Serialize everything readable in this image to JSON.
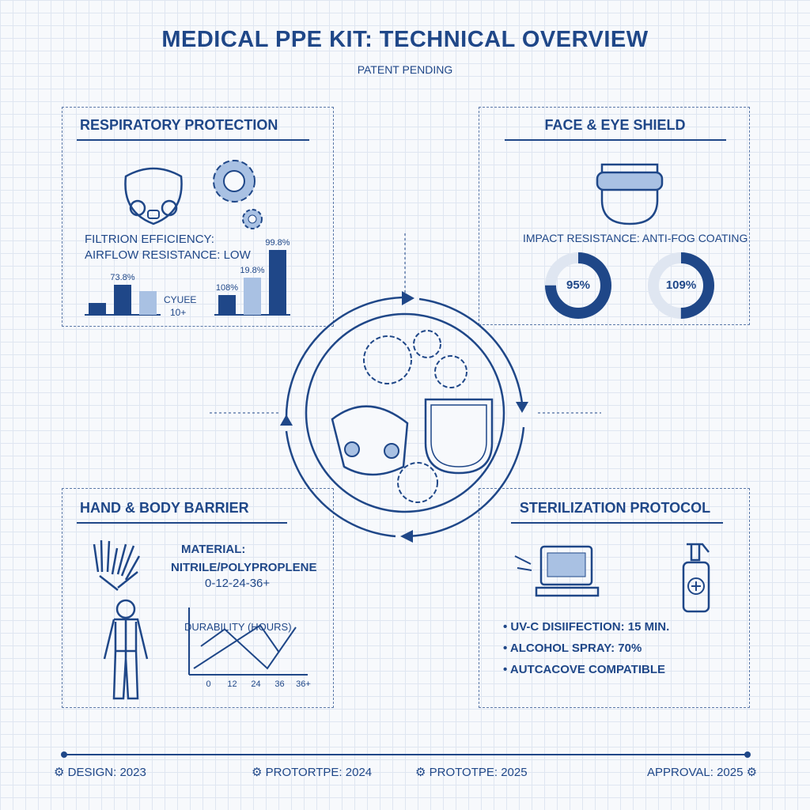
{
  "header": {
    "title": "MEDICAL PPE KIT: TECHNICAL OVERVIEW",
    "subtitle": "PATENT PENDING"
  },
  "respiratory": {
    "heading": "RESPIRATORY PROTECTION",
    "line1": "FILTRION EFFICIENCY:",
    "line2": "AIRFLOW RESISTANCE: LOW",
    "cycle_label": "CYUEE",
    "cycle_value": "10+",
    "chart_a": {
      "type": "bar",
      "labels": [
        "",
        "73.8%",
        ""
      ],
      "values": [
        15,
        38,
        30
      ]
    },
    "chart_b": {
      "type": "bar",
      "labels": [
        "108%",
        "19.8%",
        "99.8%"
      ],
      "values": [
        25,
        47,
        82
      ]
    }
  },
  "face": {
    "heading": "FACE & EYE SHIELD",
    "line1": "IMPACT RESISTANCE: ANTI-FOG COATING",
    "donuts": [
      {
        "label": "95%",
        "fill": 0.75
      },
      {
        "label": "109%",
        "fill": 0.5
      }
    ]
  },
  "hand": {
    "heading": "HAND & BODY BARRIER",
    "material_label": "MATERIAL:",
    "material_value": "NITRILE/POLYPROPLENE",
    "scale": "0-12-24-36+",
    "chart": {
      "type": "line",
      "title": "DURABILITY (HOURS)",
      "x_ticks": [
        "0",
        "12",
        "24",
        "36",
        "36+"
      ],
      "series": [
        {
          "values": [
            [
              -0.5,
              45
            ],
            [
              0.5,
              72
            ],
            [
              2.3,
              10
            ],
            [
              3.5,
              75
            ]
          ]
        },
        {
          "values": [
            [
              -0.8,
              10
            ],
            [
              2,
              78
            ],
            [
              2.8,
              35
            ]
          ]
        }
      ]
    }
  },
  "steril": {
    "heading": "STERILIZATION PROTOCOL",
    "items": [
      "UV-C DISIIFECTION: 15 MIN.",
      "ALCOHOL SPRAY: 70%",
      "AUTCACOVE COMPATIBLE"
    ]
  },
  "timeline": {
    "items": [
      "DESIGN: 2023",
      "PROTORTPE: 2024",
      "PROTOTPE: 2025",
      "APPROVAL: 2025"
    ]
  },
  "colors": {
    "primary": "#1f4788",
    "light": "#a9c1e3"
  }
}
